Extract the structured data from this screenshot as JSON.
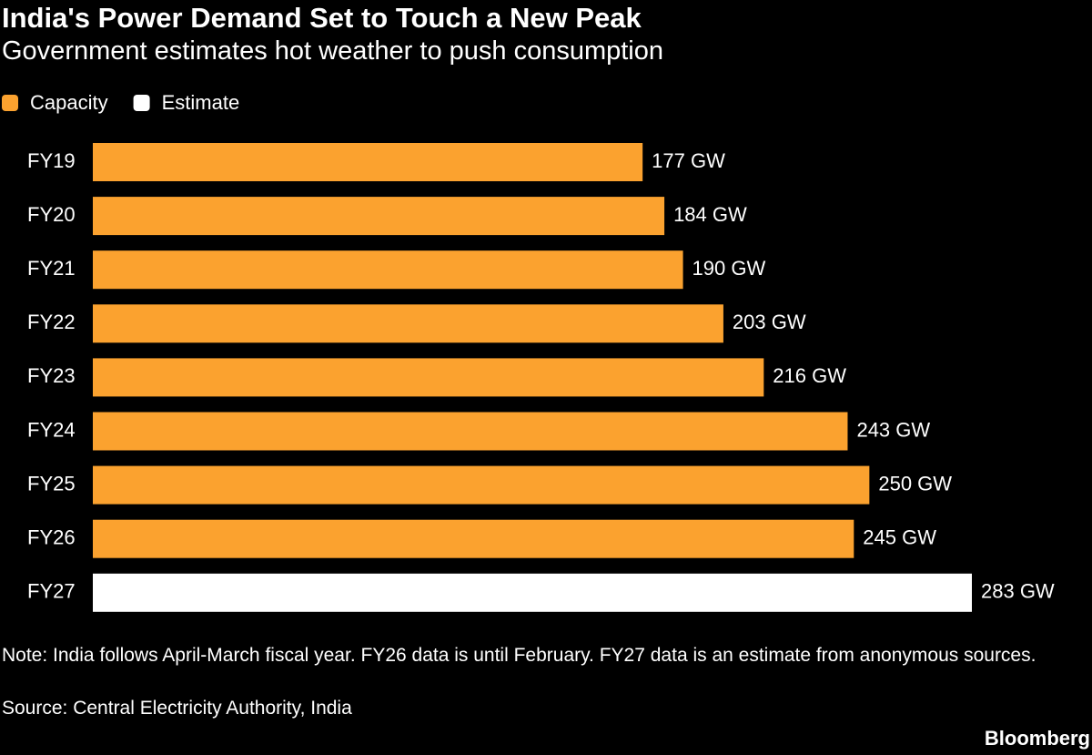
{
  "chart_data": {
    "type": "bar",
    "orientation": "horizontal",
    "title": "India's Power Demand Set to Touch a New Peak",
    "subtitle": "Government estimates hot weather to push consumption",
    "legend": "top-left",
    "categories": [
      "FY19",
      "FY20",
      "FY21",
      "FY22",
      "FY23",
      "FY24",
      "FY25",
      "FY26",
      "FY27"
    ],
    "series": [
      {
        "name": "Capacity",
        "color": "#fba22f",
        "values": [
          177,
          184,
          190,
          203,
          216,
          243,
          250,
          245,
          null
        ],
        "value_labels": [
          "177 GW",
          "184 GW",
          "190 GW",
          "203 GW",
          "216 GW",
          "243 GW",
          "250 GW",
          "245 GW",
          null
        ]
      },
      {
        "name": "Estimate",
        "color": "#ffffff",
        "values": [
          null,
          null,
          null,
          null,
          null,
          null,
          null,
          null,
          283
        ],
        "value_labels": [
          null,
          null,
          null,
          null,
          null,
          null,
          null,
          null,
          "283 GW"
        ]
      }
    ],
    "note": "Note: India follows April-March fiscal year. FY26 data is until February. FY27 data is an estimate from anonymous sources.",
    "source": "Source: Central Electricity Authority, India",
    "brand": "Bloomberg"
  }
}
